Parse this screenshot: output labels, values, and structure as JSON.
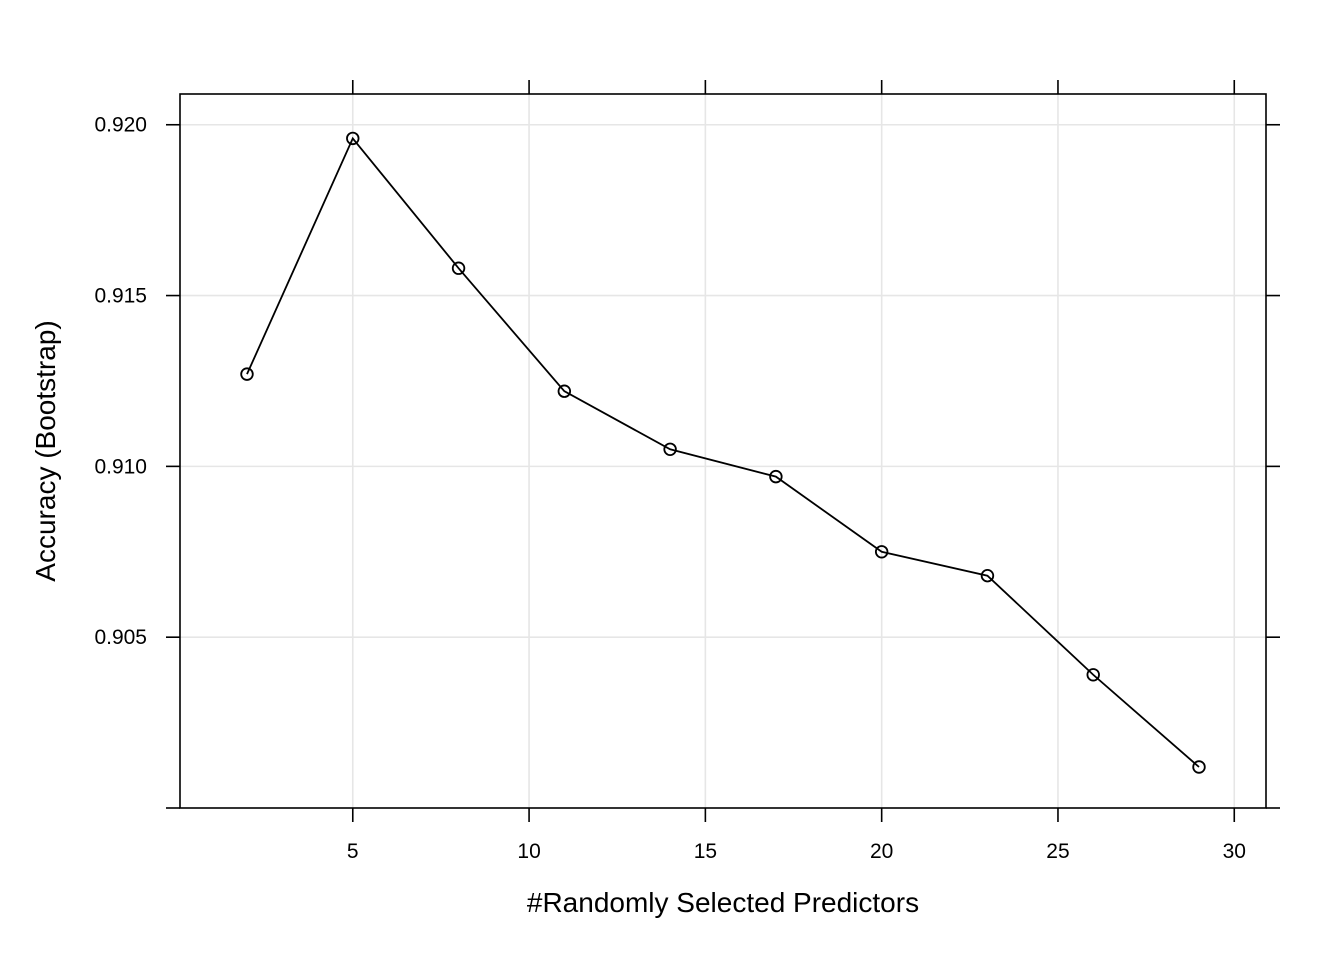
{
  "chart_data": {
    "type": "line",
    "title": "",
    "xlabel": "#Randomly Selected Predictors",
    "ylabel": "Accuracy (Bootstrap)",
    "x_ticks": [
      5,
      10,
      15,
      20,
      25,
      30
    ],
    "x_tick_labels": [
      "5",
      "10",
      "15",
      "20",
      "25",
      "30"
    ],
    "y_ticks": [
      0.905,
      0.91,
      0.915,
      0.92
    ],
    "y_tick_labels": [
      "0.905",
      "0.910",
      "0.915",
      "0.920"
    ],
    "xlim": [
      0.1,
      30.9
    ],
    "ylim": [
      0.9,
      0.9209
    ],
    "grid": true,
    "marker": "open-circle",
    "line_color": "#000000",
    "grid_color": "#e6e6e6",
    "series": [
      {
        "x": [
          2,
          5,
          8,
          11,
          14,
          17,
          20,
          23,
          26,
          29
        ],
        "y": [
          0.9127,
          0.9196,
          0.9158,
          0.9122,
          0.9105,
          0.9097,
          0.9075,
          0.9068,
          0.9039,
          0.9012
        ]
      }
    ]
  }
}
